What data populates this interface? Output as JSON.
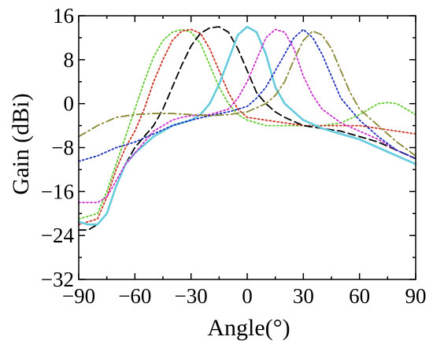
{
  "chart_data": {
    "type": "line",
    "xlabel": "Angle(°)",
    "ylabel": "Gain (dBi)",
    "xlim": [
      -90,
      90
    ],
    "ylim": [
      -32,
      16
    ],
    "xticks": [
      -90,
      -60,
      -30,
      0,
      30,
      60,
      90
    ],
    "yticks": [
      -32,
      -24,
      -16,
      -8,
      0,
      8,
      16
    ],
    "x_tick_labels": [
      "−90",
      "−60",
      "−30",
      "0",
      "30",
      "60",
      "90"
    ],
    "y_tick_labels": [
      "−32",
      "−24",
      "−16",
      "−8",
      "0",
      "8",
      "16"
    ],
    "grid": false,
    "series": [
      {
        "color": "#66cc33",
        "style": "dotted",
        "x": [
          -90,
          -85,
          -80,
          -75,
          -70,
          -65,
          -60,
          -55,
          -50,
          -45,
          -40,
          -35,
          -30,
          -25,
          -20,
          -15,
          -10,
          -5,
          0,
          10,
          20,
          30,
          40,
          50,
          60,
          65,
          70,
          75,
          80,
          85,
          90
        ],
        "y": [
          -21,
          -20.5,
          -20,
          -16,
          -11,
          -6,
          -1,
          4,
          8.5,
          11.5,
          13,
          13.5,
          13,
          11,
          7,
          3,
          0,
          -2,
          -3,
          -4,
          -4,
          -4,
          -4,
          -3.5,
          -2,
          -1,
          0,
          0.2,
          0,
          -1,
          -2
        ]
      },
      {
        "color": "#cc3322",
        "style": "dotted",
        "x": [
          -90,
          -85,
          -80,
          -75,
          -70,
          -65,
          -60,
          -55,
          -50,
          -45,
          -40,
          -35,
          -30,
          -25,
          -20,
          -15,
          -10,
          -5,
          0,
          10,
          20,
          30,
          40,
          50,
          60,
          70,
          80,
          90
        ],
        "y": [
          -22,
          -21.5,
          -21,
          -17,
          -12,
          -8,
          -5,
          -1,
          4,
          8,
          11.5,
          13.2,
          13.5,
          12.8,
          10,
          6,
          2,
          -1,
          -2.5,
          -3,
          -3.5,
          -4,
          -4,
          -4,
          -4,
          -4.5,
          -5,
          -5.5
        ]
      },
      {
        "color": "#000000",
        "style": "dashed",
        "x": [
          -90,
          -85,
          -80,
          -75,
          -70,
          -65,
          -60,
          -55,
          -50,
          -45,
          -40,
          -35,
          -30,
          -25,
          -20,
          -15,
          -10,
          -5,
          0,
          5,
          10,
          15,
          20,
          30,
          40,
          50,
          60,
          70,
          80,
          90
        ],
        "y": [
          -23,
          -23,
          -22,
          -20,
          -15,
          -11,
          -8,
          -6,
          -4,
          -1,
          3,
          7,
          10.5,
          12.8,
          13.8,
          14,
          13,
          10,
          6,
          2,
          0,
          -1.5,
          -2.5,
          -4,
          -4.5,
          -5,
          -6,
          -7,
          -8.5,
          -10
        ]
      },
      {
        "color": "#66ccdd",
        "style": "solid",
        "x": [
          -90,
          -85,
          -80,
          -75,
          -70,
          -65,
          -60,
          -55,
          -50,
          -45,
          -40,
          -35,
          -30,
          -25,
          -20,
          -15,
          -10,
          -5,
          0,
          5,
          10,
          15,
          20,
          25,
          30,
          40,
          50,
          60,
          70,
          80,
          90
        ],
        "y": [
          -21.5,
          -22,
          -22,
          -20,
          -15,
          -11,
          -9,
          -7.5,
          -6,
          -5,
          -4,
          -3.5,
          -3,
          -2,
          0,
          3.5,
          8,
          12.5,
          14,
          13,
          9,
          3,
          0,
          -1.5,
          -3,
          -4.5,
          -5.5,
          -6.5,
          -8,
          -9.5,
          -11
        ]
      },
      {
        "color": "#cc33cc",
        "style": "dotted",
        "x": [
          -90,
          -85,
          -80,
          -75,
          -70,
          -65,
          -60,
          -55,
          -50,
          -45,
          -40,
          -35,
          -30,
          -20,
          -10,
          -5,
          0,
          5,
          10,
          15,
          20,
          25,
          30,
          35,
          40,
          50,
          60,
          70,
          80,
          90
        ],
        "y": [
          -18,
          -18,
          -18,
          -17,
          -14,
          -11,
          -9,
          -7,
          -5,
          -4,
          -3,
          -2.5,
          -2.2,
          -2,
          -1,
          1,
          4,
          8,
          12,
          13.5,
          13,
          10,
          5,
          1.5,
          -1,
          -3.5,
          -5,
          -6.5,
          -8.5,
          -10
        ]
      },
      {
        "color": "#2233bb",
        "style": "dotted",
        "x": [
          -90,
          -80,
          -70,
          -60,
          -50,
          -40,
          -30,
          -20,
          -10,
          0,
          5,
          10,
          15,
          20,
          25,
          30,
          35,
          40,
          45,
          50,
          60,
          70,
          80,
          90
        ],
        "y": [
          -10.5,
          -9.5,
          -8,
          -7,
          -5.5,
          -4,
          -3,
          -2.2,
          -1.5,
          -0.5,
          1,
          3,
          6,
          9,
          12,
          13.5,
          12,
          9,
          5,
          1,
          -3,
          -6,
          -8.5,
          -10
        ]
      },
      {
        "color": "#888833",
        "style": "dashdot",
        "x": [
          -90,
          -80,
          -70,
          -60,
          -50,
          -40,
          -30,
          -20,
          -10,
          0,
          10,
          15,
          20,
          25,
          30,
          35,
          40,
          45,
          50,
          55,
          60,
          70,
          80,
          90
        ],
        "y": [
          -6,
          -4,
          -2.5,
          -2,
          -1.8,
          -1.8,
          -2,
          -2.2,
          -2,
          -1.5,
          0,
          1.5,
          4,
          8,
          11.5,
          13.2,
          12.5,
          10,
          6,
          2,
          -1,
          -4,
          -7,
          -9.5
        ]
      }
    ]
  }
}
